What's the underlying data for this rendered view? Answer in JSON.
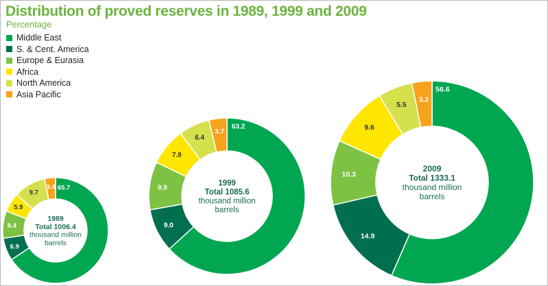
{
  "title": "Distribution of proved reserves in 1989, 1999 and 2009",
  "subtitle": "Percentage",
  "legend": [
    {
      "label": "Middle East",
      "color": "#00a650"
    },
    {
      "label": "S. & Cent. America",
      "color": "#006f4f"
    },
    {
      "label": "Europe & Eurasia",
      "color": "#7dc243"
    },
    {
      "label": "Africa",
      "color": "#ffe600"
    },
    {
      "label": "North America",
      "color": "#d5e04d"
    },
    {
      "label": "Asia Pacific",
      "color": "#f7a21b"
    }
  ],
  "chart_data": {
    "type": "pie",
    "variant": "donut",
    "legend_position": "top-left",
    "categories": [
      "Middle East",
      "S. & Cent. America",
      "Europe & Eurasia",
      "Africa",
      "North America",
      "Asia Pacific"
    ],
    "colors": [
      "#00a650",
      "#006f4f",
      "#7dc243",
      "#ffe600",
      "#d5e04d",
      "#f7a21b"
    ],
    "series": [
      {
        "name": "1989",
        "total_line": "Total 1006.4",
        "unit_line1": "thousand million",
        "unit_line2": "barrels",
        "values": [
          65.7,
          6.9,
          8.4,
          5.9,
          9.7,
          3.4
        ],
        "labels": [
          "65.7",
          "6.9",
          "8.4",
          "5.9",
          "9.7",
          "3.4"
        ]
      },
      {
        "name": "1999",
        "total_line": "Total 1085.6",
        "unit_line1": "thousand million",
        "unit_line2": "barrels",
        "values": [
          63.2,
          9.0,
          9.9,
          7.8,
          6.4,
          3.7
        ],
        "labels": [
          "63.2",
          "9.0",
          "9.9",
          "7.8",
          "6.4",
          "3.7"
        ]
      },
      {
        "name": "2009",
        "total_line": "Total 1333.1",
        "unit_line1": "thousand million",
        "unit_line2": "barrels",
        "values": [
          56.6,
          14.9,
          10.3,
          9.6,
          5.5,
          3.2
        ],
        "labels": [
          "56.6",
          "14.9",
          "10.3",
          "9.6",
          "5.5",
          "3.2"
        ]
      }
    ]
  }
}
